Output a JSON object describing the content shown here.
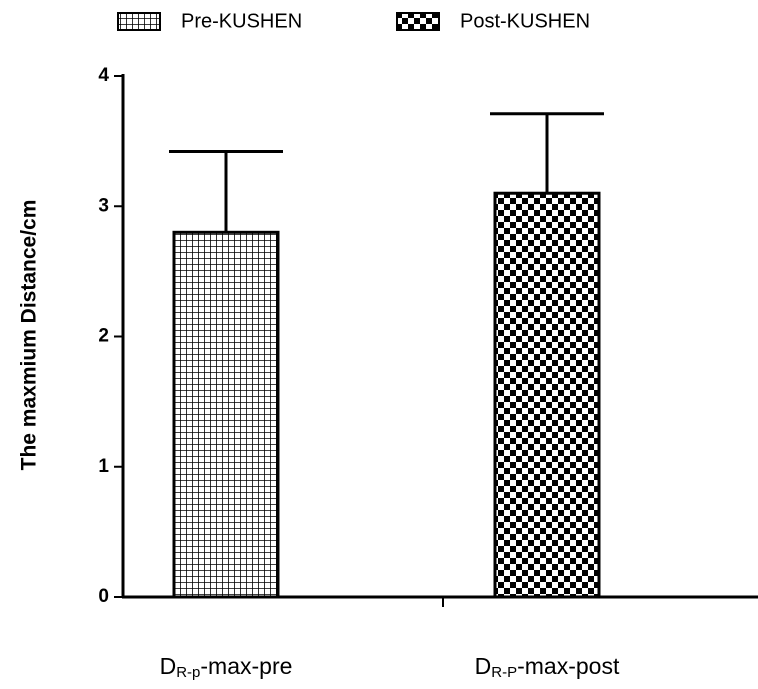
{
  "chart_data": {
    "type": "bar",
    "ylabel": "The maxmium Distance/cm",
    "categories": [
      [
        "D",
        "R-p",
        "-max-pre"
      ],
      [
        "D",
        "R-P",
        "-max-post"
      ]
    ],
    "series": [
      {
        "name": "Pre-KUSHEN",
        "pattern": "grid",
        "color": "#000000",
        "values": [
          2.8,
          null
        ],
        "errors": [
          0.62,
          null
        ]
      },
      {
        "name": "Post-KUSHEN",
        "pattern": "checker",
        "color": "#000000",
        "values": [
          null,
          3.1
        ],
        "errors": [
          null,
          0.61
        ]
      }
    ],
    "ylim": [
      0,
      4
    ],
    "yticks": [
      0,
      1,
      2,
      3,
      4
    ],
    "grid": false
  }
}
